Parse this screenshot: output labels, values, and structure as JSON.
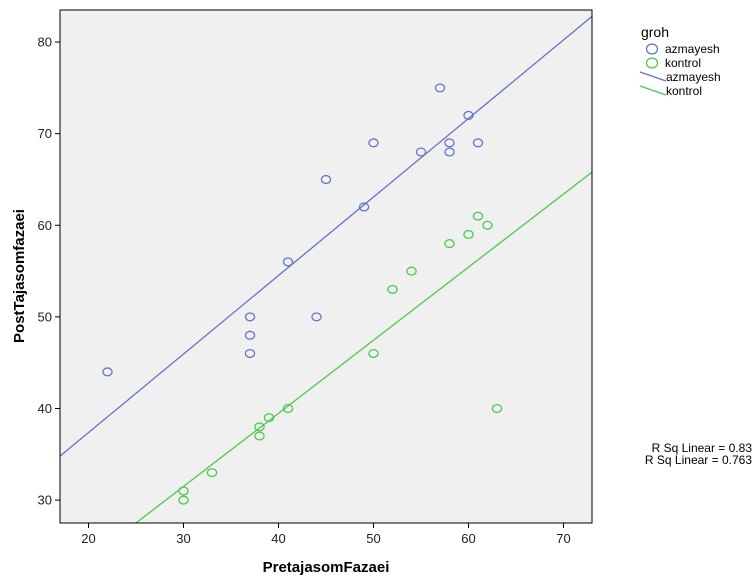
{
  "chart_data": {
    "type": "scatter",
    "title": "",
    "xlabel": "PretajasomFazaei",
    "ylabel": "PostTajasomfazaei",
    "xlim": [
      17,
      73
    ],
    "ylim": [
      27.5,
      83.5
    ],
    "xticks": [
      20,
      30,
      40,
      50,
      60,
      70
    ],
    "yticks": [
      30,
      40,
      50,
      60,
      70,
      80
    ],
    "grid": false,
    "legend_title": "groh",
    "legend_position": "top-right outside plot",
    "series": [
      {
        "name": "azmayesh",
        "color": "#6474c8",
        "marker": "open-circle",
        "points": [
          [
            22,
            44
          ],
          [
            37,
            46
          ],
          [
            37,
            48
          ],
          [
            37,
            50
          ],
          [
            41,
            56
          ],
          [
            44,
            50
          ],
          [
            45,
            65
          ],
          [
            49,
            62
          ],
          [
            50,
            69
          ],
          [
            55,
            68
          ],
          [
            57,
            75
          ],
          [
            58,
            69
          ],
          [
            58,
            68
          ],
          [
            60,
            72
          ],
          [
            61,
            69
          ]
        ]
      },
      {
        "name": "kontrol",
        "color": "#4cc84c",
        "marker": "open-circle",
        "points": [
          [
            30,
            31
          ],
          [
            30,
            30
          ],
          [
            33,
            33
          ],
          [
            38,
            38
          ],
          [
            38,
            37
          ],
          [
            39,
            39
          ],
          [
            41,
            40
          ],
          [
            50,
            46
          ],
          [
            52,
            53
          ],
          [
            54,
            55
          ],
          [
            58,
            58
          ],
          [
            60,
            59
          ],
          [
            61,
            61
          ],
          [
            62,
            60
          ],
          [
            63,
            40
          ]
        ]
      }
    ],
    "fit_lines": [
      {
        "name": "azmayesh",
        "type": "linear",
        "x": [
          17,
          73
        ],
        "y": [
          34.8,
          82.8
        ],
        "r_squared_label": "R Sq Linear = 0.83"
      },
      {
        "name": "kontrol",
        "type": "linear",
        "x": [
          25,
          73
        ],
        "y": [
          27.5,
          65.8
        ],
        "r_squared_label": "R Sq Linear = 0.763"
      }
    ]
  }
}
